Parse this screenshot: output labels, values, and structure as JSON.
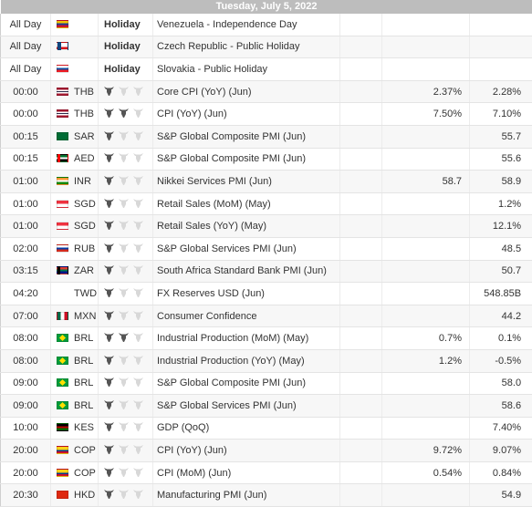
{
  "date_header": "Tuesday, July 5, 2022",
  "colors": {
    "bull_active": "#555555",
    "bull_inactive": "#d8d8d8",
    "date_bar": "#bdbdbd"
  },
  "events": [
    {
      "time": "All Day",
      "flag": [
        "#f2c400",
        "#1c3f94",
        "#cf142b"
      ],
      "currency": "",
      "importance": "",
      "event": "Venezuela - Independence Day",
      "actual": "",
      "forecast": "",
      "previous": "",
      "holiday_label": "Holiday"
    },
    {
      "time": "All Day",
      "flag": [
        "#ffffff",
        "#ffffff",
        "#d7141a"
      ],
      "flag_triangle": "#11457e",
      "currency": "",
      "importance": "",
      "event": "Czech Republic - Public Holiday",
      "actual": "",
      "forecast": "",
      "previous": "",
      "holiday_label": "Holiday"
    },
    {
      "time": "All Day",
      "flag": [
        "#ffffff",
        "#0b4ea2",
        "#ee1c25"
      ],
      "currency": "",
      "importance": "",
      "event": "Slovakia - Public Holiday",
      "actual": "",
      "forecast": "",
      "previous": "",
      "holiday_label": "Holiday"
    },
    {
      "time": "00:00",
      "flag": [
        "#a51931",
        "#ffffff",
        "#2d2a4a",
        "#ffffff",
        "#a51931"
      ],
      "currency": "THB",
      "importance": 1,
      "event": "Core CPI (YoY) (Jun)",
      "actual": "",
      "forecast": "2.37%",
      "previous": "2.28%"
    },
    {
      "time": "00:00",
      "flag": [
        "#a51931",
        "#ffffff",
        "#2d2a4a",
        "#ffffff",
        "#a51931"
      ],
      "currency": "THB",
      "importance": 2,
      "event": "CPI (YoY) (Jun)",
      "actual": "",
      "forecast": "7.50%",
      "previous": "7.10%"
    },
    {
      "time": "00:15",
      "flag": [
        "#006c35"
      ],
      "currency": "SAR",
      "importance": 1,
      "event": "S&P Global Composite PMI (Jun)",
      "actual": "",
      "forecast": "",
      "previous": "55.7"
    },
    {
      "time": "00:15",
      "flag": [
        "#00732f",
        "#ffffff",
        "#000000"
      ],
      "flag_band": "#ff0000",
      "currency": "AED",
      "importance": 1,
      "event": "S&P Global Composite PMI (Jun)",
      "actual": "",
      "forecast": "",
      "previous": "55.6"
    },
    {
      "time": "01:00",
      "flag": [
        "#ff9933",
        "#ffffff",
        "#138808"
      ],
      "currency": "INR",
      "importance": 1,
      "event": "Nikkei Services PMI (Jun)",
      "actual": "",
      "forecast": "58.7",
      "previous": "58.9"
    },
    {
      "time": "01:00",
      "flag": [
        "#ef3340",
        "#ffffff"
      ],
      "currency": "SGD",
      "importance": 1,
      "event": "Retail Sales (MoM) (May)",
      "actual": "",
      "forecast": "",
      "previous": "1.2%"
    },
    {
      "time": "01:00",
      "flag": [
        "#ef3340",
        "#ffffff"
      ],
      "currency": "SGD",
      "importance": 1,
      "event": "Retail Sales (YoY) (May)",
      "actual": "",
      "forecast": "",
      "previous": "12.1%"
    },
    {
      "time": "02:00",
      "flag": [
        "#ffffff",
        "#0039a6",
        "#d52b1e"
      ],
      "currency": "RUB",
      "importance": 1,
      "event": "S&P Global Services PMI (Jun)",
      "actual": "",
      "forecast": "",
      "previous": "48.5"
    },
    {
      "time": "03:15",
      "flag": [
        "#e03c31",
        "#007749",
        "#001489"
      ],
      "flag_band": "#000000",
      "currency": "ZAR",
      "importance": 1,
      "event": "South Africa Standard Bank PMI (Jun)",
      "actual": "",
      "forecast": "",
      "previous": "50.7"
    },
    {
      "time": "04:20",
      "flag": [],
      "currency": "TWD",
      "importance": 1,
      "event": "FX Reserves USD (Jun)",
      "actual": "",
      "forecast": "",
      "previous": "548.85B"
    },
    {
      "time": "07:00",
      "flag": [
        "#006847",
        "#ffffff",
        "#ce1126"
      ],
      "flag_vertical": true,
      "currency": "MXN",
      "importance": 1,
      "event": "Consumer Confidence",
      "actual": "",
      "forecast": "",
      "previous": "44.2"
    },
    {
      "time": "08:00",
      "flag": [
        "#009c3b"
      ],
      "flag_diamond": "#ffdf00",
      "currency": "BRL",
      "importance": 2,
      "event": "Industrial Production (MoM) (May)",
      "actual": "",
      "forecast": "0.7%",
      "previous": "0.1%"
    },
    {
      "time": "08:00",
      "flag": [
        "#009c3b"
      ],
      "flag_diamond": "#ffdf00",
      "currency": "BRL",
      "importance": 1,
      "event": "Industrial Production (YoY) (May)",
      "actual": "",
      "forecast": "1.2%",
      "previous": "-0.5%"
    },
    {
      "time": "09:00",
      "flag": [
        "#009c3b"
      ],
      "flag_diamond": "#ffdf00",
      "currency": "BRL",
      "importance": 1,
      "event": "S&P Global Composite PMI (Jun)",
      "actual": "",
      "forecast": "",
      "previous": "58.0"
    },
    {
      "time": "09:00",
      "flag": [
        "#009c3b"
      ],
      "flag_diamond": "#ffdf00",
      "currency": "BRL",
      "importance": 1,
      "event": "S&P Global Services PMI (Jun)",
      "actual": "",
      "forecast": "",
      "previous": "58.6"
    },
    {
      "time": "10:00",
      "flag": [
        "#000000",
        "#bb0000",
        "#006600"
      ],
      "currency": "KES",
      "importance": 1,
      "event": "GDP (QoQ)",
      "actual": "",
      "forecast": "",
      "previous": "7.40%"
    },
    {
      "time": "20:00",
      "flag": [
        "#fcd116",
        "#fcd116",
        "#003893",
        "#ce1126"
      ],
      "currency": "COP",
      "importance": 1,
      "event": "CPI (YoY) (Jun)",
      "actual": "",
      "forecast": "9.72%",
      "previous": "9.07%"
    },
    {
      "time": "20:00",
      "flag": [
        "#fcd116",
        "#fcd116",
        "#003893",
        "#ce1126"
      ],
      "currency": "COP",
      "importance": 1,
      "event": "CPI (MoM) (Jun)",
      "actual": "",
      "forecast": "0.54%",
      "previous": "0.84%"
    },
    {
      "time": "20:30",
      "flag": [
        "#de2910"
      ],
      "currency": "HKD",
      "importance": 1,
      "event": "Manufacturing PMI (Jun)",
      "actual": "",
      "forecast": "",
      "previous": "54.9"
    }
  ]
}
